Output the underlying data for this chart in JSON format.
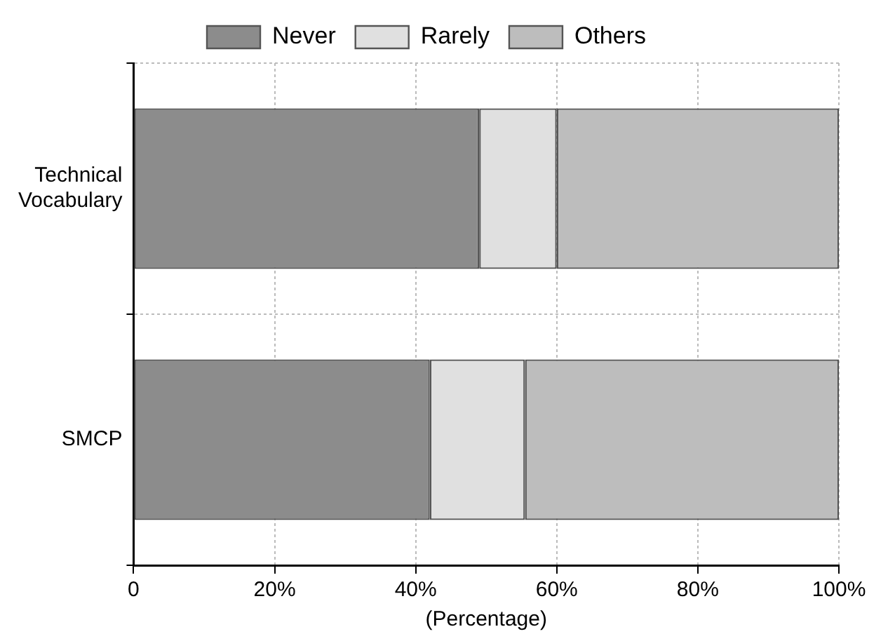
{
  "chart_data": {
    "type": "bar",
    "orientation": "horizontal",
    "stacked": true,
    "xlabel": "(Percentage)",
    "categories": [
      "Technical Vocabulary",
      "SMCP"
    ],
    "series": [
      {
        "name": "Never",
        "color": "#8c8c8c",
        "values": [
          49,
          42
        ]
      },
      {
        "name": "Rarely",
        "color": "#e0e0e0",
        "values": [
          11,
          13.5
        ]
      },
      {
        "name": "Others",
        "color": "#bdbdbd",
        "values": [
          40,
          44.5
        ]
      }
    ],
    "xlim": [
      0,
      100
    ],
    "xticks": [
      {
        "value": 0,
        "label": "0"
      },
      {
        "value": 20,
        "label": "20%"
      },
      {
        "value": 40,
        "label": "40%"
      },
      {
        "value": 60,
        "label": "60%"
      },
      {
        "value": 80,
        "label": "80%"
      },
      {
        "value": 100,
        "label": "100%"
      }
    ],
    "grid": true,
    "legend": "top"
  }
}
